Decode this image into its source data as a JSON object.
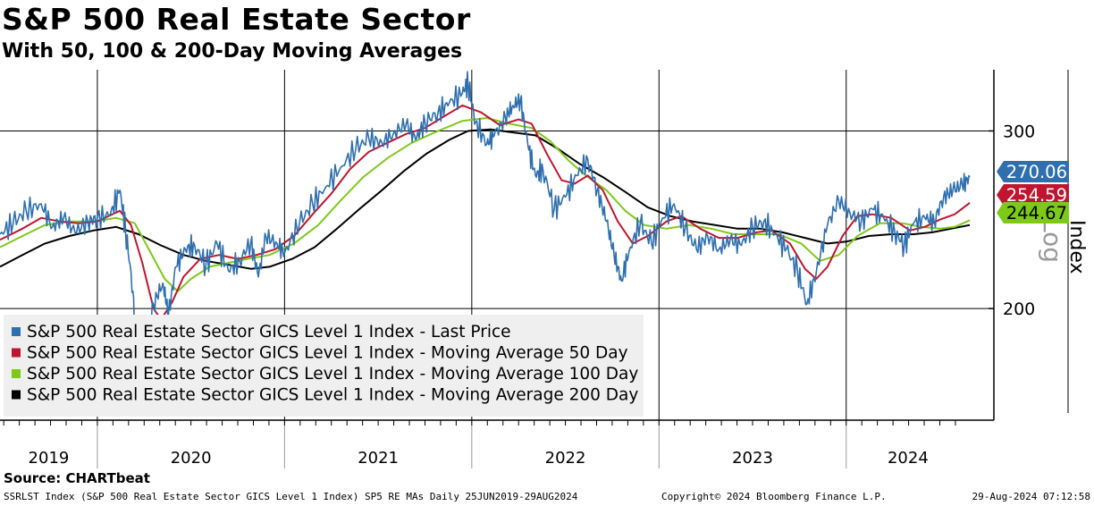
{
  "header": {
    "title": "S&P 500 Real Estate Sector",
    "subtitle": "With 50, 100 & 200-Day Moving Averages"
  },
  "footer": {
    "source": "Source: CHARTbeat",
    "ticker_info": "SSRLST Index (S&P 500 Real Estate Sector GICS Level 1 Index) SP5 RE MAs  Daily 25JUN2019-29AUG2024",
    "copyright": "Copyright© 2024 Bloomberg Finance L.P.",
    "timestamp": "29-Aug-2024 07:12:58"
  },
  "colors": {
    "last_price": "#2f6fad",
    "ma50": "#c0152f",
    "ma100": "#7dc91a",
    "ma200": "#000000",
    "legend_bg": "#efefef"
  },
  "chart_data": {
    "type": "line",
    "title": "S&P 500 Real Estate Sector",
    "subtitle": "With 50, 100 & 200-Day Moving Averages",
    "ylabel": "Index",
    "y_scale_label": "Log",
    "y_scale": "log",
    "ylim": [
      155,
      345
    ],
    "y_ticks": [
      200,
      300
    ],
    "x_range": [
      2019.48,
      2024.66
    ],
    "x_tick_labels": [
      "2019",
      "2020",
      "2021",
      "2022",
      "2023",
      "2024"
    ],
    "grid": true,
    "legend_position": "bottom-left",
    "last_value_labels": [
      {
        "series": "last",
        "value": "270.06"
      },
      {
        "series": "ma50",
        "value": "254.59"
      },
      {
        "series": "ma100",
        "value": "244.67"
      }
    ],
    "series": [
      {
        "key": "last",
        "name": "S&P 500 Real Estate Sector GICS Level 1 Index - Last Price",
        "color": "#2f6fad",
        "points": [
          [
            2019.48,
            237
          ],
          [
            2019.55,
            243
          ],
          [
            2019.62,
            250
          ],
          [
            2019.7,
            254
          ],
          [
            2019.76,
            241
          ],
          [
            2019.82,
            246
          ],
          [
            2019.88,
            238
          ],
          [
            2019.95,
            244
          ],
          [
            2020.0,
            246
          ],
          [
            2020.07,
            248
          ],
          [
            2020.12,
            262
          ],
          [
            2020.15,
            240
          ],
          [
            2020.19,
            208
          ],
          [
            2020.22,
            162
          ],
          [
            2020.25,
            178
          ],
          [
            2020.3,
            202
          ],
          [
            2020.35,
            212
          ],
          [
            2020.38,
            197
          ],
          [
            2020.42,
            220
          ],
          [
            2020.47,
            229
          ],
          [
            2020.52,
            231
          ],
          [
            2020.58,
            221
          ],
          [
            2020.64,
            232
          ],
          [
            2020.7,
            218
          ],
          [
            2020.76,
            223
          ],
          [
            2020.82,
            233
          ],
          [
            2020.86,
            215
          ],
          [
            2020.9,
            236
          ],
          [
            2020.96,
            232
          ],
          [
            2021.0,
            227
          ],
          [
            2021.08,
            243
          ],
          [
            2021.15,
            254
          ],
          [
            2021.22,
            264
          ],
          [
            2021.3,
            276
          ],
          [
            2021.38,
            288
          ],
          [
            2021.45,
            295
          ],
          [
            2021.52,
            292
          ],
          [
            2021.58,
            298
          ],
          [
            2021.65,
            305
          ],
          [
            2021.7,
            294
          ],
          [
            2021.75,
            306
          ],
          [
            2021.82,
            313
          ],
          [
            2021.88,
            320
          ],
          [
            2021.95,
            327
          ],
          [
            2021.98,
            335
          ],
          [
            2022.02,
            306
          ],
          [
            2022.08,
            291
          ],
          [
            2022.12,
            297
          ],
          [
            2022.18,
            309
          ],
          [
            2022.22,
            318
          ],
          [
            2022.26,
            322
          ],
          [
            2022.3,
            290
          ],
          [
            2022.34,
            271
          ],
          [
            2022.38,
            275
          ],
          [
            2022.44,
            251
          ],
          [
            2022.5,
            258
          ],
          [
            2022.56,
            271
          ],
          [
            2022.62,
            281
          ],
          [
            2022.67,
            262
          ],
          [
            2022.72,
            244
          ],
          [
            2022.76,
            226
          ],
          [
            2022.8,
            213
          ],
          [
            2022.84,
            228
          ],
          [
            2022.9,
            243
          ],
          [
            2022.96,
            232
          ],
          [
            2023.02,
            246
          ],
          [
            2023.08,
            254
          ],
          [
            2023.14,
            240
          ],
          [
            2023.2,
            229
          ],
          [
            2023.26,
            236
          ],
          [
            2023.32,
            229
          ],
          [
            2023.38,
            234
          ],
          [
            2023.44,
            231
          ],
          [
            2023.5,
            241
          ],
          [
            2023.56,
            244
          ],
          [
            2023.62,
            237
          ],
          [
            2023.68,
            229
          ],
          [
            2023.74,
            218
          ],
          [
            2023.79,
            202
          ],
          [
            2023.84,
            217
          ],
          [
            2023.9,
            242
          ],
          [
            2023.96,
            256
          ],
          [
            2024.02,
            249
          ],
          [
            2024.08,
            244
          ],
          [
            2024.14,
            251
          ],
          [
            2024.2,
            246
          ],
          [
            2024.26,
            238
          ],
          [
            2024.31,
            231
          ],
          [
            2024.36,
            243
          ],
          [
            2024.42,
            246
          ],
          [
            2024.47,
            244
          ],
          [
            2024.52,
            258
          ],
          [
            2024.57,
            262
          ],
          [
            2024.62,
            265
          ],
          [
            2024.66,
            270.06
          ]
        ]
      },
      {
        "key": "ma50",
        "name": "S&P 500 Real Estate Sector GICS Level 1 Index - Moving Average 50 Day",
        "color": "#c0152f",
        "points": [
          [
            2019.48,
            234
          ],
          [
            2019.6,
            240
          ],
          [
            2019.7,
            246
          ],
          [
            2019.8,
            244
          ],
          [
            2019.9,
            243
          ],
          [
            2020.0,
            244
          ],
          [
            2020.12,
            250
          ],
          [
            2020.18,
            242
          ],
          [
            2020.24,
            222
          ],
          [
            2020.3,
            200
          ],
          [
            2020.34,
            195
          ],
          [
            2020.4,
            203
          ],
          [
            2020.46,
            215
          ],
          [
            2020.55,
            224
          ],
          [
            2020.65,
            226
          ],
          [
            2020.75,
            224
          ],
          [
            2020.85,
            226
          ],
          [
            2020.95,
            229
          ],
          [
            2021.05,
            236
          ],
          [
            2021.15,
            248
          ],
          [
            2021.25,
            260
          ],
          [
            2021.35,
            275
          ],
          [
            2021.45,
            286
          ],
          [
            2021.55,
            292
          ],
          [
            2021.65,
            298
          ],
          [
            2021.75,
            302
          ],
          [
            2021.85,
            310
          ],
          [
            2021.95,
            318
          ],
          [
            2022.05,
            313
          ],
          [
            2022.15,
            304
          ],
          [
            2022.25,
            308
          ],
          [
            2022.32,
            305
          ],
          [
            2022.4,
            285
          ],
          [
            2022.48,
            268
          ],
          [
            2022.55,
            266
          ],
          [
            2022.62,
            271
          ],
          [
            2022.7,
            262
          ],
          [
            2022.78,
            244
          ],
          [
            2022.86,
            232
          ],
          [
            2022.94,
            236
          ],
          [
            2023.04,
            244
          ],
          [
            2023.12,
            247
          ],
          [
            2023.22,
            240
          ],
          [
            2023.32,
            235
          ],
          [
            2023.42,
            235
          ],
          [
            2023.52,
            238
          ],
          [
            2023.6,
            239
          ],
          [
            2023.7,
            232
          ],
          [
            2023.78,
            219
          ],
          [
            2023.84,
            214
          ],
          [
            2023.9,
            220
          ],
          [
            2023.98,
            236
          ],
          [
            2024.06,
            247
          ],
          [
            2024.14,
            248
          ],
          [
            2024.24,
            246
          ],
          [
            2024.34,
            239
          ],
          [
            2024.42,
            241
          ],
          [
            2024.5,
            245
          ],
          [
            2024.58,
            248
          ],
          [
            2024.66,
            254.59
          ]
        ]
      },
      {
        "key": "ma100",
        "name": "S&P 500 Real Estate Sector GICS Level 1 Index - Moving Average 100 Day",
        "color": "#7dc91a",
        "points": [
          [
            2019.48,
            230
          ],
          [
            2019.6,
            236
          ],
          [
            2019.72,
            242
          ],
          [
            2019.85,
            244
          ],
          [
            2019.98,
            244
          ],
          [
            2020.1,
            246
          ],
          [
            2020.2,
            243
          ],
          [
            2020.28,
            228
          ],
          [
            2020.36,
            214
          ],
          [
            2020.43,
            208
          ],
          [
            2020.5,
            214
          ],
          [
            2020.6,
            220
          ],
          [
            2020.7,
            222
          ],
          [
            2020.8,
            224
          ],
          [
            2020.92,
            226
          ],
          [
            2021.05,
            232
          ],
          [
            2021.18,
            242
          ],
          [
            2021.3,
            256
          ],
          [
            2021.42,
            270
          ],
          [
            2021.55,
            282
          ],
          [
            2021.68,
            292
          ],
          [
            2021.82,
            300
          ],
          [
            2021.95,
            307
          ],
          [
            2022.08,
            309
          ],
          [
            2022.2,
            305
          ],
          [
            2022.32,
            302
          ],
          [
            2022.42,
            293
          ],
          [
            2022.52,
            280
          ],
          [
            2022.62,
            270
          ],
          [
            2022.72,
            262
          ],
          [
            2022.82,
            250
          ],
          [
            2022.92,
            242
          ],
          [
            2023.04,
            240
          ],
          [
            2023.16,
            242
          ],
          [
            2023.28,
            240
          ],
          [
            2023.4,
            237
          ],
          [
            2023.52,
            237
          ],
          [
            2023.64,
            237
          ],
          [
            2023.76,
            232
          ],
          [
            2023.86,
            223
          ],
          [
            2023.96,
            226
          ],
          [
            2024.06,
            236
          ],
          [
            2024.18,
            243
          ],
          [
            2024.3,
            243
          ],
          [
            2024.4,
            241
          ],
          [
            2024.5,
            240
          ],
          [
            2024.58,
            241
          ],
          [
            2024.66,
            244.67
          ]
        ]
      },
      {
        "key": "ma200",
        "name": "S&P 500 Real Estate Sector GICS Level 1 Index - Moving Average 200 Day",
        "color": "#000000",
        "points": [
          [
            2019.48,
            220
          ],
          [
            2019.6,
            226
          ],
          [
            2019.72,
            232
          ],
          [
            2019.85,
            236
          ],
          [
            2019.98,
            239
          ],
          [
            2020.1,
            241
          ],
          [
            2020.22,
            237
          ],
          [
            2020.34,
            231
          ],
          [
            2020.46,
            226
          ],
          [
            2020.58,
            223
          ],
          [
            2020.7,
            221
          ],
          [
            2020.82,
            219
          ],
          [
            2020.92,
            220
          ],
          [
            2021.04,
            224
          ],
          [
            2021.16,
            230
          ],
          [
            2021.28,
            240
          ],
          [
            2021.4,
            251
          ],
          [
            2021.52,
            262
          ],
          [
            2021.64,
            274
          ],
          [
            2021.76,
            285
          ],
          [
            2021.88,
            294
          ],
          [
            2021.98,
            300
          ],
          [
            2022.1,
            301
          ],
          [
            2022.22,
            299
          ],
          [
            2022.34,
            297
          ],
          [
            2022.46,
            288
          ],
          [
            2022.58,
            278
          ],
          [
            2022.7,
            270
          ],
          [
            2022.82,
            261
          ],
          [
            2022.94,
            252
          ],
          [
            2023.06,
            247
          ],
          [
            2023.18,
            244
          ],
          [
            2023.3,
            242
          ],
          [
            2023.42,
            240
          ],
          [
            2023.54,
            240
          ],
          [
            2023.66,
            238
          ],
          [
            2023.78,
            235
          ],
          [
            2023.9,
            232
          ],
          [
            2024.0,
            233
          ],
          [
            2024.12,
            236
          ],
          [
            2024.24,
            237
          ],
          [
            2024.36,
            237
          ],
          [
            2024.46,
            238
          ],
          [
            2024.56,
            240
          ],
          [
            2024.66,
            242
          ]
        ]
      }
    ]
  }
}
